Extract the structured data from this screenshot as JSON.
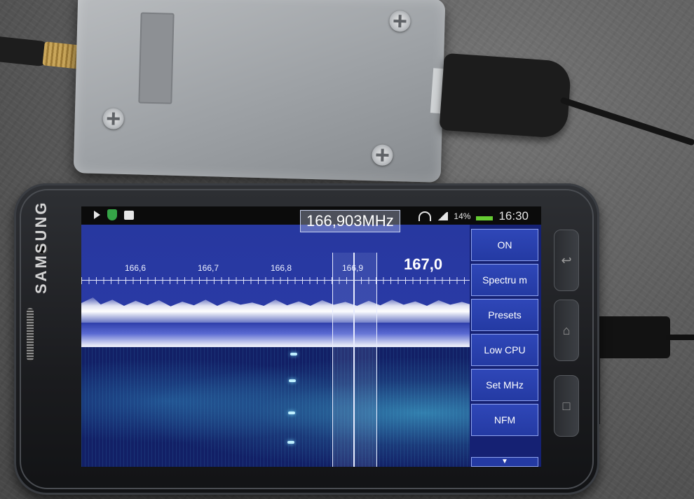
{
  "device": {
    "brand": "SAMSUNG"
  },
  "statusbar": {
    "battery_percent": "14%",
    "time": "16:30",
    "icons": [
      "play-icon",
      "shield-icon",
      "bag-icon",
      "wifi-icon",
      "signal-icon",
      "battery-icon"
    ]
  },
  "tuner": {
    "frequency_readout": "166,903MHz",
    "scale_labels": [
      "166,6",
      "166,7",
      "166,8",
      "166,9"
    ],
    "scale_big_label": "167,0"
  },
  "menu": {
    "items": [
      {
        "label": "ON"
      },
      {
        "label": "Spectru m"
      },
      {
        "label": "Presets"
      },
      {
        "label": "Low CPU"
      },
      {
        "label": "Set MHz"
      },
      {
        "label": "NFM"
      }
    ],
    "scroll_down": "▼"
  },
  "hardware_keys": [
    "back-key",
    "home-key",
    "menu-key"
  ]
}
